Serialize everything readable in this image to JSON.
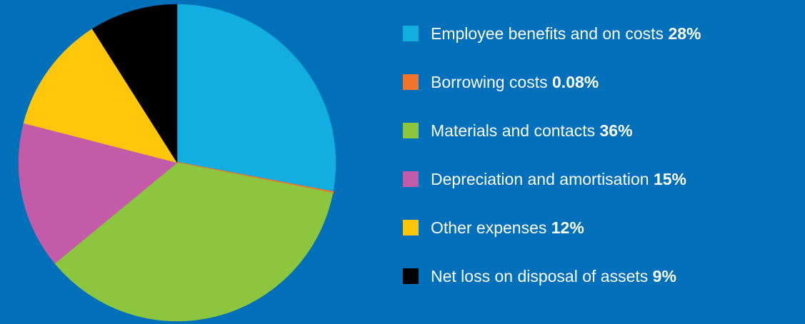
{
  "chart_data": {
    "type": "pie",
    "categories": [
      "Employee benefits and on costs",
      "Borrowing costs",
      "Materials and contacts",
      "Depreciation and amortisation",
      "Other expenses",
      "Net loss on disposal of assets"
    ],
    "values": [
      28,
      0.08,
      36,
      15,
      12,
      9
    ],
    "value_labels": [
      "28%",
      "0.08%",
      "36%",
      "15%",
      "12%",
      "9%"
    ],
    "colors": [
      "#12aee0",
      "#f0742a",
      "#8cc63f",
      "#c45ba8",
      "#ffc60a",
      "#000000"
    ],
    "start_angle_deg": 0,
    "direction": "clockwise",
    "legend_position": "right"
  },
  "background_color": "#0070bb",
  "legend": {
    "items": [
      {
        "label": "Employee benefits and on costs",
        "value": "28%",
        "color": "#12aee0"
      },
      {
        "label": "Borrowing costs",
        "value": "0.08%",
        "color": "#f0742a"
      },
      {
        "label": "Materials and contacts",
        "value": "36%",
        "color": "#8cc63f"
      },
      {
        "label": "Depreciation and amortisation",
        "value": "15%",
        "color": "#c45ba8"
      },
      {
        "label": "Other expenses",
        "value": "12%",
        "color": "#ffc60a"
      },
      {
        "label": "Net loss on disposal of assets",
        "value": "9%",
        "color": "#000000"
      }
    ]
  }
}
